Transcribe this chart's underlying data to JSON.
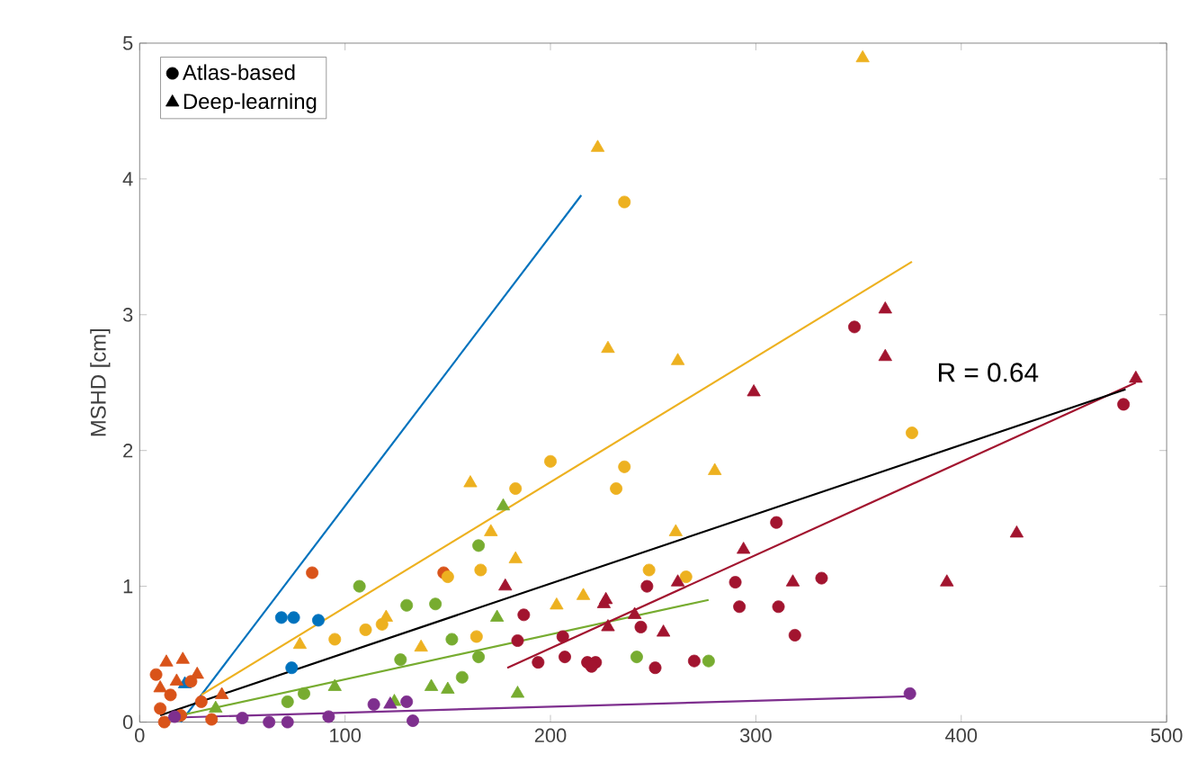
{
  "chart_data": {
    "type": "scatter",
    "ylabel": "MSHD [cm]",
    "xlim": [
      0,
      500
    ],
    "ylim": [
      0,
      5
    ],
    "xticks": [
      0,
      100,
      200,
      300,
      400,
      500
    ],
    "yticks": [
      0,
      1,
      2,
      3,
      4,
      5
    ],
    "legend": "top left",
    "grid": false,
    "annotations": [
      "R = 0.64"
    ],
    "series": [
      {
        "name": "Atlas-based",
        "color": "#000000",
        "marker": "circle"
      },
      {
        "name": "Deep-learning",
        "color": "#000000",
        "marker": "triangle"
      },
      {
        "color": "#0072bd",
        "marker": "circle",
        "x": [
          69,
          75,
          87,
          74
        ],
        "values": [
          0.77,
          0.77,
          0.75,
          0.4
        ]
      },
      {
        "color": "#0072bd",
        "marker": "triangle",
        "x": [
          22
        ],
        "values": [
          0.28
        ]
      },
      {
        "color": "#d95319",
        "marker": "circle",
        "x": [
          10,
          15,
          20,
          25,
          8,
          30,
          35,
          12,
          84,
          148
        ],
        "values": [
          0.1,
          0.2,
          0.05,
          0.3,
          0.35,
          0.15,
          0.02,
          0.0,
          1.1,
          1.1
        ]
      },
      {
        "color": "#d95319",
        "marker": "triangle",
        "x": [
          13,
          21,
          18,
          10,
          28,
          40
        ],
        "values": [
          0.44,
          0.46,
          0.3,
          0.25,
          0.35,
          0.2
        ]
      },
      {
        "color": "#edb120",
        "marker": "circle",
        "x": [
          200,
          183,
          236,
          232,
          166,
          164,
          110,
          118,
          95,
          150,
          236,
          376,
          248,
          266
        ],
        "values": [
          1.92,
          1.72,
          1.88,
          1.72,
          1.12,
          0.63,
          0.68,
          0.72,
          0.61,
          1.07,
          3.83,
          2.13,
          1.12,
          1.07
        ]
      },
      {
        "color": "#edb120",
        "marker": "triangle",
        "x": [
          223,
          228,
          352,
          262,
          280,
          261,
          216,
          203,
          161,
          171,
          183,
          78,
          120,
          137
        ],
        "values": [
          4.23,
          2.75,
          4.89,
          2.66,
          1.85,
          1.4,
          0.93,
          0.86,
          1.76,
          1.4,
          1.2,
          0.57,
          0.77,
          0.55
        ]
      },
      {
        "color": "#77ac30",
        "marker": "circle",
        "x": [
          165,
          107,
          144,
          130,
          152,
          127,
          157,
          165,
          80,
          72,
          242,
          277
        ],
        "values": [
          1.3,
          1.0,
          0.87,
          0.86,
          0.61,
          0.46,
          0.33,
          0.48,
          0.21,
          0.15,
          0.48,
          0.45
        ]
      },
      {
        "color": "#77ac30",
        "marker": "triangle",
        "x": [
          177,
          174,
          142,
          150,
          184,
          95,
          124,
          37
        ],
        "values": [
          1.59,
          0.77,
          0.26,
          0.24,
          0.21,
          0.26,
          0.15,
          0.1
        ]
      },
      {
        "color": "#7e2f8e",
        "marker": "circle",
        "x": [
          92,
          114,
          130,
          133,
          63,
          72,
          50,
          17,
          375
        ],
        "values": [
          0.04,
          0.13,
          0.15,
          0.01,
          0.0,
          0.0,
          0.03,
          0.04,
          0.21
        ]
      },
      {
        "color": "#7e2f8e",
        "marker": "triangle",
        "x": [
          122
        ],
        "values": [
          0.13
        ]
      },
      {
        "color": "#a2142f",
        "marker": "circle",
        "x": [
          187,
          206,
          194,
          218,
          222,
          207,
          184,
          247,
          310,
          290,
          332,
          292,
          311,
          319,
          479,
          220,
          251,
          270,
          244,
          348
        ],
        "values": [
          0.79,
          0.63,
          0.44,
          0.44,
          0.44,
          0.48,
          0.6,
          1.0,
          1.47,
          1.03,
          1.06,
          0.85,
          0.85,
          0.64,
          2.34,
          0.41,
          0.4,
          0.45,
          0.7,
          2.91
        ]
      },
      {
        "color": "#a2142f",
        "marker": "triangle",
        "x": [
          363,
          363,
          299,
          485,
          427,
          393,
          318,
          294,
          262,
          227,
          228,
          255,
          241,
          178,
          226
        ],
        "values": [
          3.04,
          2.69,
          2.43,
          2.53,
          1.39,
          1.03,
          1.03,
          1.27,
          1.03,
          0.9,
          0.7,
          0.66,
          0.79,
          1.0,
          0.87
        ]
      },
      {
        "type": "line",
        "color": "#0072bd",
        "x": [
          20,
          215
        ],
        "values": [
          0,
          3.88
        ]
      },
      {
        "type": "line",
        "color": "#edb120",
        "x": [
          30,
          376
        ],
        "values": [
          0.2,
          3.39
        ]
      },
      {
        "type": "line",
        "color": "#77ac30",
        "x": [
          20,
          277
        ],
        "values": [
          0.05,
          0.9
        ]
      },
      {
        "type": "line",
        "color": "#7e2f8e",
        "x": [
          10,
          375
        ],
        "values": [
          0.03,
          0.19
        ]
      },
      {
        "type": "line",
        "color": "#a2142f",
        "x": [
          179,
          485
        ],
        "values": [
          0.4,
          2.5
        ]
      },
      {
        "type": "line",
        "color": "#000000",
        "x": [
          10,
          480
        ],
        "values": [
          0.05,
          2.45
        ]
      }
    ]
  }
}
